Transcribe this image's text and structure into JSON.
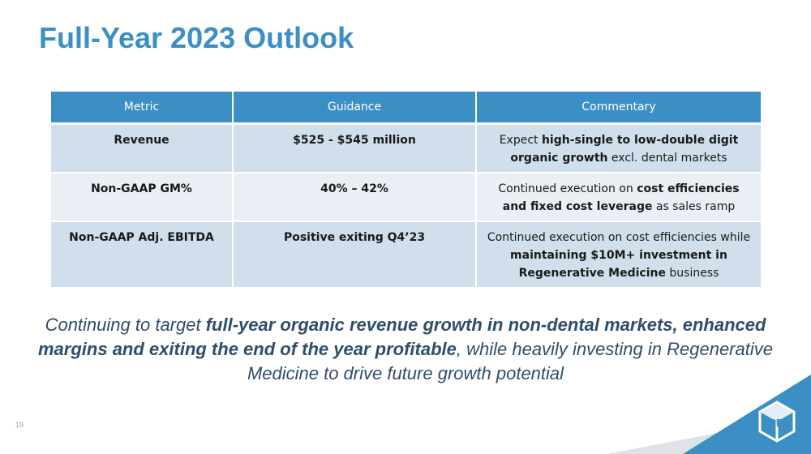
{
  "title": "Full-Year 2023 Outlook",
  "table": {
    "headers": [
      "Metric",
      "Guidance",
      "Commentary"
    ],
    "rows": [
      {
        "metric": "Revenue",
        "guidance": "$525 - $545 million",
        "commentary": [
          {
            "text": "Expect ",
            "bold": false
          },
          {
            "text": "high-single to low-double digit organic growth",
            "bold": true
          },
          {
            "text": " excl. dental markets",
            "bold": false
          }
        ]
      },
      {
        "metric": "Non-GAAP GM%",
        "guidance": "40% – 42%",
        "commentary": [
          {
            "text": "Continued execution on ",
            "bold": false
          },
          {
            "text": "cost efficiencies and fixed cost leverage",
            "bold": true
          },
          {
            "text": " as sales ramp",
            "bold": false
          }
        ]
      },
      {
        "metric": "Non-GAAP Adj. EBITDA",
        "guidance": "Positive exiting Q4’23",
        "commentary": [
          {
            "text": "Continued execution on cost efficiencies while ",
            "bold": false
          },
          {
            "text": "maintaining $10M+ investment in Regenerative Medicine",
            "bold": true
          },
          {
            "text": " business",
            "bold": false
          }
        ]
      }
    ]
  },
  "tagline": [
    {
      "text": "Continuing to target ",
      "bold": false
    },
    {
      "text": "full-year organic revenue growth in non-dental markets, enhanced margins and exiting the end of the year profitable",
      "bold": true
    },
    {
      "text": ", while heavily investing in Regenerative Medicine to drive future growth potential",
      "bold": false
    }
  ],
  "page_number": "19",
  "logo": "3D",
  "colors": {
    "accent": "#3b8fc4",
    "row_dark": "#d0dfeb",
    "row_light": "#e9eff4",
    "tagline": "#2f4d6a"
  }
}
